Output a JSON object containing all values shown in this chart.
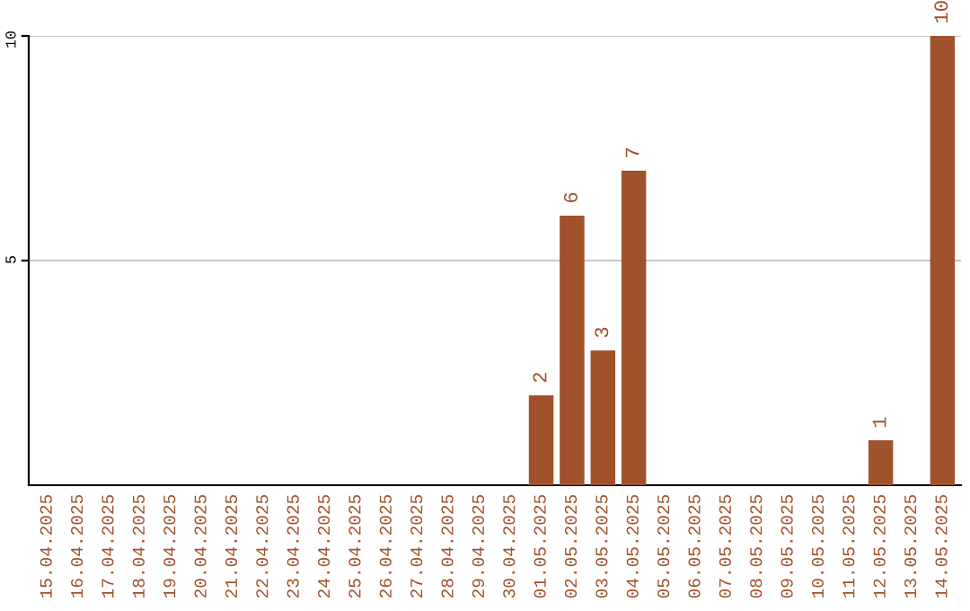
{
  "chart_data": {
    "type": "bar",
    "categories": [
      "15.04.2025",
      "16.04.2025",
      "17.04.2025",
      "18.04.2025",
      "19.04.2025",
      "20.04.2025",
      "21.04.2025",
      "22.04.2025",
      "23.04.2025",
      "24.04.2025",
      "25.04.2025",
      "26.04.2025",
      "27.04.2025",
      "28.04.2025",
      "29.04.2025",
      "30.04.2025",
      "01.05.2025",
      "02.05.2025",
      "03.05.2025",
      "04.05.2025",
      "05.05.2025",
      "06.05.2025",
      "07.05.2025",
      "08.05.2025",
      "09.05.2025",
      "10.05.2025",
      "11.05.2025",
      "12.05.2025",
      "13.05.2025",
      "14.05.2025"
    ],
    "values": [
      0,
      0,
      0,
      0,
      0,
      0,
      0,
      0,
      0,
      0,
      0,
      0,
      0,
      0,
      0,
      0,
      2,
      6,
      3,
      7,
      0,
      0,
      0,
      0,
      0,
      0,
      0,
      1,
      0,
      10
    ],
    "value_labels": [
      null,
      null,
      null,
      null,
      null,
      null,
      null,
      null,
      null,
      null,
      null,
      null,
      null,
      null,
      null,
      null,
      "2",
      "6",
      "3",
      "7",
      null,
      null,
      null,
      null,
      null,
      null,
      null,
      "1",
      null,
      "10"
    ],
    "color": "#a0522d",
    "ylim": [
      0,
      10
    ],
    "yticks": [
      5,
      10
    ],
    "grid": "y"
  }
}
